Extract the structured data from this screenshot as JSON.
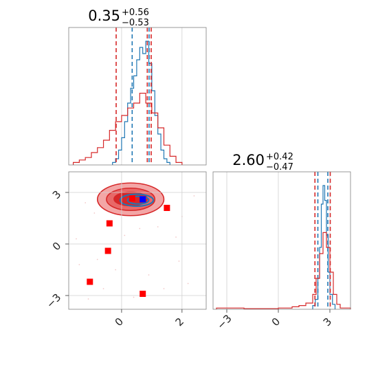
{
  "chart_data": [
    {
      "type": "histogram",
      "panel": "top-left",
      "title": {
        "value": "0.35",
        "plus": "+0.56",
        "minus": "−0.53"
      },
      "xlim": [
        -1.75,
        2.8
      ],
      "series": [
        {
          "name": "",
          "color": "#1f77b4",
          "bins": [
            [
              -0.3,
              0.02
            ],
            [
              -0.2,
              0.05
            ],
            [
              -0.1,
              0.12
            ],
            [
              0.0,
              0.22
            ],
            [
              0.1,
              0.35
            ],
            [
              0.2,
              0.5
            ],
            [
              0.3,
              0.62
            ],
            [
              0.4,
              0.72
            ],
            [
              0.5,
              0.85
            ],
            [
              0.6,
              0.95
            ],
            [
              0.7,
              0.9
            ],
            [
              0.8,
              1.0
            ],
            [
              0.9,
              0.82
            ],
            [
              1.0,
              0.6
            ],
            [
              1.1,
              0.4
            ],
            [
              1.2,
              0.25
            ],
            [
              1.3,
              0.12
            ],
            [
              1.4,
              0.05
            ],
            [
              1.5,
              0.02
            ]
          ],
          "quantiles": [
            0.35,
            0.91
          ]
        },
        {
          "name": "",
          "color": "#d62728",
          "bins": [
            [
              -1.6,
              0.02
            ],
            [
              -1.4,
              0.04
            ],
            [
              -1.2,
              0.06
            ],
            [
              -1.0,
              0.1
            ],
            [
              -0.8,
              0.14
            ],
            [
              -0.6,
              0.2
            ],
            [
              -0.4,
              0.28
            ],
            [
              -0.2,
              0.35
            ],
            [
              0.0,
              0.4
            ],
            [
              0.2,
              0.46
            ],
            [
              0.4,
              0.5
            ],
            [
              0.6,
              0.58
            ],
            [
              0.8,
              0.5
            ],
            [
              1.0,
              0.42
            ],
            [
              1.2,
              0.3
            ],
            [
              1.4,
              0.16
            ],
            [
              1.6,
              0.07
            ],
            [
              1.8,
              0.02
            ]
          ],
          "quantiles": [
            -0.18,
            0.85,
            0.98
          ]
        }
      ]
    },
    {
      "type": "histogram",
      "panel": "bottom-right",
      "title": {
        "value": "2.60",
        "plus": "+0.42",
        "minus": "−0.47"
      },
      "xlim": [
        -3.8,
        4.2
      ],
      "xticks": [
        "−3",
        "0",
        "3"
      ],
      "series": [
        {
          "name": "",
          "color": "#1f77b4",
          "bins": [
            [
              2.0,
              0.03
            ],
            [
              2.15,
              0.08
            ],
            [
              2.3,
              0.25
            ],
            [
              2.4,
              0.5
            ],
            [
              2.5,
              0.85
            ],
            [
              2.6,
              1.0
            ],
            [
              2.7,
              0.88
            ],
            [
              2.8,
              0.6
            ],
            [
              2.9,
              0.3
            ],
            [
              3.0,
              0.12
            ],
            [
              3.15,
              0.04
            ]
          ],
          "quantiles": [
            2.3,
            2.88
          ]
        },
        {
          "name": "",
          "color": "#d62728",
          "bins": [
            [
              -3.6,
              0.01
            ],
            [
              -3.0,
              0.01
            ],
            [
              -2.0,
              0.005
            ],
            [
              -1.0,
              0.005
            ],
            [
              0.0,
              0.01
            ],
            [
              0.8,
              0.02
            ],
            [
              1.2,
              0.03
            ],
            [
              1.6,
              0.05
            ],
            [
              2.0,
              0.12
            ],
            [
              2.2,
              0.25
            ],
            [
              2.4,
              0.45
            ],
            [
              2.6,
              0.62
            ],
            [
              2.8,
              0.5
            ],
            [
              3.0,
              0.3
            ],
            [
              3.2,
              0.12
            ],
            [
              3.4,
              0.04
            ],
            [
              3.6,
              0.01
            ]
          ],
          "quantiles": [
            2.13,
            3.02
          ]
        }
      ]
    },
    {
      "type": "scatter",
      "panel": "bottom-left",
      "xlim": [
        -1.75,
        2.8
      ],
      "ylim": [
        -3.8,
        4.2
      ],
      "xticks": [
        "0",
        "2"
      ],
      "yticks": [
        "3",
        "0",
        "−3"
      ],
      "contours": [
        {
          "color": "#f3a6a6",
          "cx": 0.3,
          "cy": 2.6,
          "rx": 1.1,
          "ry": 0.95
        },
        {
          "color": "#e86868",
          "cx": 0.3,
          "cy": 2.6,
          "rx": 0.8,
          "ry": 0.65
        },
        {
          "color": "#d62728",
          "cx": 0.3,
          "cy": 2.62,
          "rx": 0.55,
          "ry": 0.4
        }
      ],
      "blue_contours": [
        {
          "cx": 0.5,
          "cy": 2.55,
          "rx": 0.55,
          "ry": 0.35
        },
        {
          "cx": 0.55,
          "cy": 2.55,
          "rx": 0.35,
          "ry": 0.22
        }
      ],
      "red_markers": [
        [
          0.35,
          2.65
        ],
        [
          1.5,
          2.1
        ],
        [
          -0.4,
          1.2
        ],
        [
          -0.45,
          -0.4
        ],
        [
          -1.05,
          -2.2
        ],
        [
          0.7,
          -2.9
        ]
      ],
      "blue_marker": [
        0.7,
        2.6
      ]
    }
  ]
}
